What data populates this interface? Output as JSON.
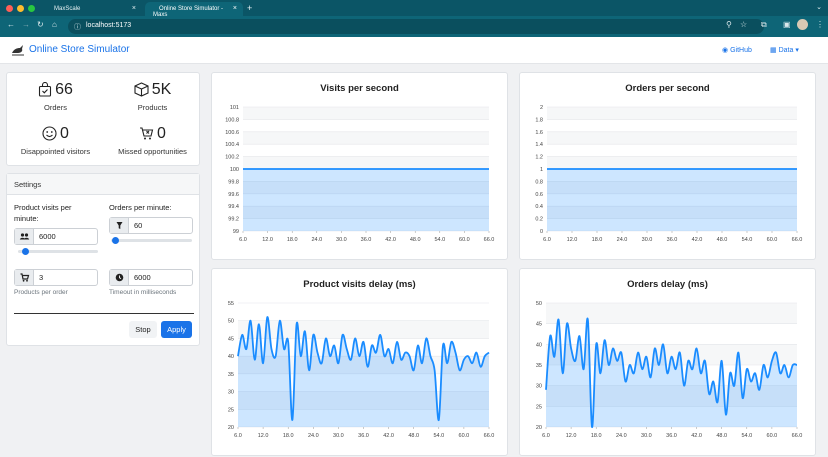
{
  "browser": {
    "tabs": [
      {
        "title": "MaxScale",
        "active": false
      },
      {
        "title": "Online Store Simulator - Maxs",
        "active": true
      }
    ],
    "url": "localhost:5173"
  },
  "app": {
    "title": "Online Store Simulator",
    "nav": {
      "github": "GitHub",
      "data": "Data"
    }
  },
  "stats": {
    "orders": {
      "value": "66",
      "label": "Orders"
    },
    "products": {
      "value": "5K",
      "label": "Products"
    },
    "disappointed": {
      "value": "0",
      "label": "Disappointed visitors"
    },
    "missed": {
      "value": "0",
      "label": "Missed opportunities"
    }
  },
  "settings": {
    "title": "Settings",
    "product_visits_label": "Product visits per minute:",
    "product_visits_value": "6000",
    "product_visits_slider": 0.05,
    "orders_label": "Orders per minute:",
    "orders_value": "60",
    "orders_slider": 0.02,
    "products_per_order_value": "3",
    "products_per_order_hint": "Products per order",
    "timeout_value": "6000",
    "timeout_hint": "Timeout in milliseconds",
    "stop_label": "Stop",
    "apply_label": "Apply"
  },
  "chart_data": [
    {
      "type": "area",
      "title": "Visits per second",
      "x_ticks": [
        "6.0",
        "12.0",
        "18.0",
        "24.0",
        "30.0",
        "36.0",
        "42.0",
        "48.0",
        "54.0",
        "60.0",
        "66.0"
      ],
      "y_ticks": [
        "99",
        "99.2",
        "99.4",
        "99.6",
        "99.8",
        "100",
        "100.2",
        "100.4",
        "100.6",
        "100.8",
        "101"
      ],
      "xlim": [
        6,
        66
      ],
      "ylim": [
        99,
        101
      ],
      "x": [
        6,
        66
      ],
      "y": [
        100,
        100
      ]
    },
    {
      "type": "area",
      "title": "Orders per second",
      "x_ticks": [
        "6.0",
        "12.0",
        "18.0",
        "24.0",
        "30.0",
        "36.0",
        "42.0",
        "48.0",
        "54.0",
        "60.0",
        "66.0"
      ],
      "y_ticks": [
        "0",
        "0.2",
        "0.4",
        "0.6",
        "0.8",
        "1",
        "1.2",
        "1.4",
        "1.6",
        "1.8",
        "2"
      ],
      "xlim": [
        6,
        66
      ],
      "ylim": [
        0,
        2
      ],
      "x": [
        6,
        66
      ],
      "y": [
        1,
        1
      ]
    },
    {
      "type": "area",
      "title": "Product visits delay (ms)",
      "x_ticks": [
        "6.0",
        "12.0",
        "18.0",
        "24.0",
        "30.0",
        "36.0",
        "42.0",
        "48.0",
        "54.0",
        "60.0",
        "66.0"
      ],
      "y_ticks": [
        "20",
        "25",
        "30",
        "35",
        "40",
        "45",
        "50",
        "55"
      ],
      "xlim": [
        6,
        66
      ],
      "ylim": [
        20,
        55
      ],
      "x": [
        6,
        7,
        8,
        9,
        10,
        11,
        12,
        13,
        14,
        15,
        16,
        17,
        18,
        19,
        20,
        21,
        22,
        23,
        24,
        25,
        26,
        27,
        28,
        29,
        30,
        31,
        32,
        33,
        34,
        35,
        36,
        37,
        38,
        39,
        40,
        41,
        42,
        43,
        44,
        45,
        46,
        47,
        48,
        49,
        50,
        51,
        52,
        53,
        54,
        55,
        56,
        57,
        58,
        59,
        60,
        61,
        62,
        63,
        64,
        65,
        66
      ],
      "y": [
        40,
        46,
        42,
        50,
        39,
        49,
        38,
        51,
        42,
        40,
        50,
        42,
        44,
        22,
        49,
        40,
        47,
        36,
        46,
        41,
        38,
        45,
        40,
        43,
        38,
        46,
        42,
        39,
        45,
        40,
        44,
        37,
        43,
        41,
        46,
        40,
        42,
        38,
        44,
        39,
        41,
        40,
        36,
        43,
        38,
        45,
        40,
        36,
        22,
        43,
        38,
        44,
        41,
        36,
        39,
        40,
        38,
        41,
        37,
        40,
        41
      ]
    },
    {
      "type": "area",
      "title": "Orders delay (ms)",
      "x_ticks": [
        "6.0",
        "12.0",
        "18.0",
        "24.0",
        "30.0",
        "36.0",
        "42.0",
        "48.0",
        "54.0",
        "60.0",
        "66.0"
      ],
      "y_ticks": [
        "20",
        "25",
        "30",
        "35",
        "40",
        "45",
        "50"
      ],
      "xlim": [
        6,
        66
      ],
      "ylim": [
        20,
        50
      ],
      "x": [
        6,
        7,
        8,
        9,
        10,
        11,
        12,
        13,
        14,
        15,
        16,
        17,
        18,
        19,
        20,
        21,
        22,
        23,
        24,
        25,
        26,
        27,
        28,
        29,
        30,
        31,
        32,
        33,
        34,
        35,
        36,
        37,
        38,
        39,
        40,
        41,
        42,
        43,
        44,
        45,
        46,
        47,
        48,
        49,
        50,
        51,
        52,
        53,
        54,
        55,
        56,
        57,
        58,
        59,
        60,
        61,
        62,
        63,
        64,
        65,
        66
      ],
      "y": [
        29,
        42,
        37,
        46,
        33,
        45,
        39,
        36,
        42,
        34,
        46,
        20,
        40,
        33,
        41,
        35,
        39,
        36,
        38,
        31,
        35,
        33,
        38,
        34,
        37,
        32,
        39,
        35,
        40,
        33,
        37,
        34,
        38,
        30,
        36,
        34,
        39,
        33,
        36,
        28,
        31,
        26,
        36,
        23,
        33,
        30,
        38,
        27,
        34,
        31,
        33,
        29,
        35,
        32,
        36,
        38,
        33,
        35,
        32,
        35,
        35
      ]
    }
  ]
}
